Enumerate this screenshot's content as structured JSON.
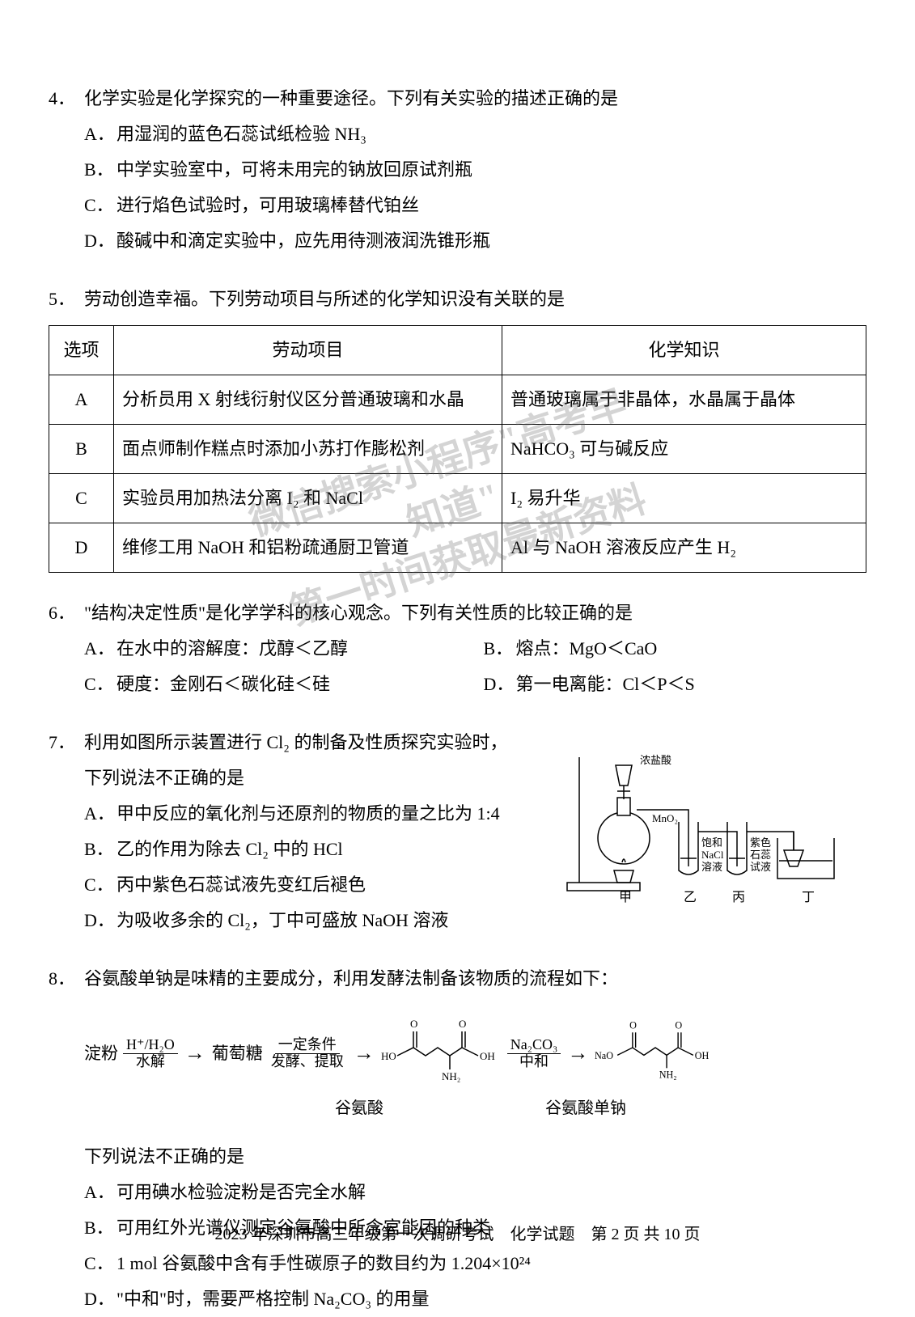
{
  "page": {
    "footer": "2023 年深圳市高三年级第一次调研考试　化学试题　第 2 页 共 10 页",
    "watermark_line1": "微信搜索小程序\"高考早知道\"",
    "watermark_line2": "第一时间获取最新资料"
  },
  "q4": {
    "num": "4．",
    "stem": "化学实验是化学探究的一种重要途径。下列有关实验的描述正确的是",
    "A": "用湿润的蓝色石蕊试纸检验 NH₃",
    "B": "中学实验室中，可将未用完的钠放回原试剂瓶",
    "C": "进行焰色试验时，可用玻璃棒替代铂丝",
    "D": "酸碱中和滴定实验中，应先用待测液润洗锥形瓶"
  },
  "q5": {
    "num": "5．",
    "stem": "劳动创造幸福。下列劳动项目与所述的化学知识没有关联的是",
    "headers": [
      "选项",
      "劳动项目",
      "化学知识"
    ],
    "rows": [
      [
        "A",
        "分析员用 X 射线衍射仪区分普通玻璃和水晶",
        "普通玻璃属于非晶体，水晶属于晶体"
      ],
      [
        "B",
        "面点师制作糕点时添加小苏打作膨松剂",
        "NaHCO₃ 可与碱反应"
      ],
      [
        "C",
        "实验员用加热法分离 I₂ 和 NaCl",
        "I₂ 易升华"
      ],
      [
        "D",
        "维修工用 NaOH 和铝粉疏通厨卫管道",
        "Al 与 NaOH 溶液反应产生 H₂"
      ]
    ]
  },
  "q6": {
    "num": "6．",
    "stem": "\"结构决定性质\"是化学学科的核心观念。下列有关性质的比较正确的是",
    "A": "在水中的溶解度：戊醇＜乙醇",
    "B": "熔点：MgO＜CaO",
    "C": "硬度：金刚石＜碳化硅＜硅",
    "D": "第一电离能：Cl＜P＜S"
  },
  "q7": {
    "num": "7．",
    "stem_l1": "利用如图所示装置进行 Cl₂ 的制备及性质探究实验时，",
    "stem_l2": "下列说法不正确的是",
    "A": "甲中反应的氧化剂与还原剂的物质的量之比为 1:4",
    "B": "乙的作用为除去 Cl₂ 中的 HCl",
    "C": "丙中紫色石蕊试液先变红后褪色",
    "D": "为吸收多余的 Cl₂，丁中可盛放 NaOH 溶液",
    "fig": {
      "label_hcl": "浓盐酸",
      "label_mno2": "MnO₂",
      "label_nacl": "饱和\nNaCl\n溶液",
      "label_litmus": "紫色\n石蕊\n试液",
      "bottom": [
        "甲",
        "乙",
        "丙",
        "丁"
      ],
      "line_color": "#000000"
    }
  },
  "q8": {
    "num": "8．",
    "stem": "谷氨酸单钠是味精的主要成分，利用发酵法制备该物质的流程如下：",
    "flow": {
      "start": "淀粉",
      "arrow1_top": "H⁺/H₂O",
      "arrow1_bot": "水解",
      "mid1": "葡萄糖",
      "arrow2_top": "一定条件",
      "arrow2_bot": "发酵、提取",
      "prod1_name": "谷氨酸",
      "arrow3_top": "Na₂CO₃",
      "arrow3_bot": "中和",
      "prod2_name": "谷氨酸单钠",
      "left_end": "HO",
      "right_end_1": "OH",
      "na_end": "NaO",
      "nh2": "NH₂",
      "o": "O"
    },
    "continue": "下列说法不正确的是",
    "A": "可用碘水检验淀粉是否完全水解",
    "B": "可用红外光谱仪测定谷氨酸中所含官能团的种类",
    "C": "1 mol 谷氨酸中含有手性碳原子的数目约为 1.204×10²⁴",
    "D": "\"中和\"时，需要严格控制 Na₂CO₃ 的用量"
  }
}
